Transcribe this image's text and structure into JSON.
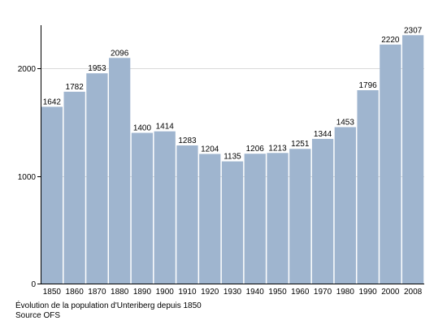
{
  "chart_data": {
    "type": "bar",
    "categories": [
      "1850",
      "1860",
      "1870",
      "1880",
      "1890",
      "1900",
      "1910",
      "1920",
      "1930",
      "1940",
      "1950",
      "1960",
      "1970",
      "1980",
      "1990",
      "2000",
      "2008"
    ],
    "values": [
      1642,
      1782,
      1953,
      2096,
      1400,
      1414,
      1283,
      1204,
      1135,
      1206,
      1213,
      1251,
      1344,
      1453,
      1796,
      2220,
      2307
    ],
    "data_labels": [
      "1642",
      "1782",
      "1953",
      "2096",
      "1400",
      "1414",
      "1283",
      "1204",
      "1135",
      "1206",
      "1213",
      "1251",
      "1344",
      "1453",
      "1796",
      "2220",
      "2307"
    ],
    "y_ticks": [
      0,
      1000,
      2000
    ],
    "y_tick_labels": [
      "0",
      "1000",
      "2000"
    ],
    "ylim": [
      0,
      2400
    ],
    "grid": true,
    "bar_color": "#9fb5cf",
    "xlabel": "",
    "ylabel": ""
  },
  "caption": {
    "title": "Évolution de la population d'Unteriberg depuis 1850",
    "source": "Source OFS"
  }
}
